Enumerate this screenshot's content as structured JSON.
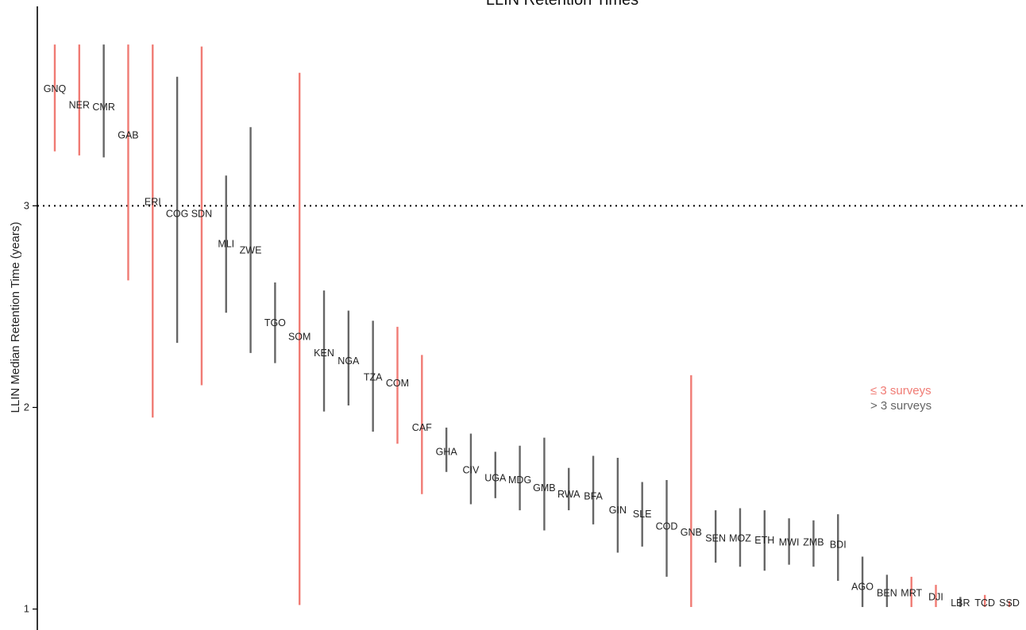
{
  "chart_data": {
    "type": "errorbar",
    "title": "LLIN Retention Times",
    "ylabel": "LLIN Median Retention Time (years)",
    "xlabel": "",
    "ylim": [
      0.9,
      3.95
    ],
    "yticks": [
      1,
      2,
      3
    ],
    "reference_line": {
      "y": 3,
      "style": "dotted"
    },
    "grid": false,
    "legend_position": "right",
    "colors": {
      "le3": "#f07b74",
      "gt3": "#666666"
    },
    "legend": [
      {
        "key": "le3",
        "label": "≤ 3 surveys"
      },
      {
        "key": "gt3",
        "label": "> 3 surveys"
      }
    ],
    "points": [
      {
        "code": "GNQ",
        "median": 3.58,
        "lower": 3.27,
        "upper": 3.8,
        "group": "le3"
      },
      {
        "code": "NER",
        "median": 3.5,
        "lower": 3.25,
        "upper": 3.8,
        "group": "le3"
      },
      {
        "code": "CMR",
        "median": 3.49,
        "lower": 3.24,
        "upper": 3.8,
        "group": "gt3"
      },
      {
        "code": "GAB",
        "median": 3.35,
        "lower": 2.63,
        "upper": 3.8,
        "group": "le3"
      },
      {
        "code": "ERI",
        "median": 3.02,
        "lower": 1.95,
        "upper": 3.8,
        "group": "le3"
      },
      {
        "code": "COG",
        "median": 2.96,
        "lower": 2.32,
        "upper": 3.64,
        "group": "gt3"
      },
      {
        "code": "SDN",
        "median": 2.96,
        "lower": 2.11,
        "upper": 3.79,
        "group": "le3"
      },
      {
        "code": "MLI",
        "median": 2.81,
        "lower": 2.47,
        "upper": 3.15,
        "group": "gt3"
      },
      {
        "code": "ZWE",
        "median": 2.78,
        "lower": 2.27,
        "upper": 3.39,
        "group": "gt3"
      },
      {
        "code": "TGO",
        "median": 2.42,
        "lower": 2.22,
        "upper": 2.62,
        "group": "gt3"
      },
      {
        "code": "SOM",
        "median": 2.35,
        "lower": 1.02,
        "upper": 3.66,
        "group": "le3"
      },
      {
        "code": "KEN",
        "median": 2.27,
        "lower": 1.98,
        "upper": 2.58,
        "group": "gt3"
      },
      {
        "code": "NGA",
        "median": 2.23,
        "lower": 2.01,
        "upper": 2.48,
        "group": "gt3"
      },
      {
        "code": "TZA",
        "median": 2.15,
        "lower": 1.88,
        "upper": 2.43,
        "group": "gt3"
      },
      {
        "code": "COM",
        "median": 2.12,
        "lower": 1.82,
        "upper": 2.4,
        "group": "le3"
      },
      {
        "code": "CAF",
        "median": 1.9,
        "lower": 1.57,
        "upper": 2.26,
        "group": "le3"
      },
      {
        "code": "GHA",
        "median": 1.78,
        "lower": 1.68,
        "upper": 1.9,
        "group": "gt3"
      },
      {
        "code": "CIV",
        "median": 1.69,
        "lower": 1.52,
        "upper": 1.87,
        "group": "gt3"
      },
      {
        "code": "UGA",
        "median": 1.65,
        "lower": 1.55,
        "upper": 1.78,
        "group": "gt3"
      },
      {
        "code": "MDG",
        "median": 1.64,
        "lower": 1.49,
        "upper": 1.81,
        "group": "gt3"
      },
      {
        "code": "GMB",
        "median": 1.6,
        "lower": 1.39,
        "upper": 1.85,
        "group": "gt3"
      },
      {
        "code": "RWA",
        "median": 1.57,
        "lower": 1.49,
        "upper": 1.7,
        "group": "gt3"
      },
      {
        "code": "BFA",
        "median": 1.56,
        "lower": 1.42,
        "upper": 1.76,
        "group": "gt3"
      },
      {
        "code": "GIN",
        "median": 1.49,
        "lower": 1.28,
        "upper": 1.75,
        "group": "gt3"
      },
      {
        "code": "SLE",
        "median": 1.47,
        "lower": 1.31,
        "upper": 1.63,
        "group": "gt3"
      },
      {
        "code": "COD",
        "median": 1.41,
        "lower": 1.16,
        "upper": 1.64,
        "group": "gt3"
      },
      {
        "code": "GNB",
        "median": 1.38,
        "lower": 1.01,
        "upper": 2.16,
        "group": "le3"
      },
      {
        "code": "SEN",
        "median": 1.35,
        "lower": 1.23,
        "upper": 1.49,
        "group": "gt3"
      },
      {
        "code": "MOZ",
        "median": 1.35,
        "lower": 1.21,
        "upper": 1.5,
        "group": "gt3"
      },
      {
        "code": "ETH",
        "median": 1.34,
        "lower": 1.19,
        "upper": 1.49,
        "group": "gt3"
      },
      {
        "code": "MWI",
        "median": 1.33,
        "lower": 1.22,
        "upper": 1.45,
        "group": "gt3"
      },
      {
        "code": "ZMB",
        "median": 1.33,
        "lower": 1.21,
        "upper": 1.44,
        "group": "gt3"
      },
      {
        "code": "BDI",
        "median": 1.32,
        "lower": 1.14,
        "upper": 1.47,
        "group": "gt3"
      },
      {
        "code": "AGO",
        "median": 1.11,
        "lower": 1.01,
        "upper": 1.26,
        "group": "gt3"
      },
      {
        "code": "BEN",
        "median": 1.08,
        "lower": 1.01,
        "upper": 1.17,
        "group": "gt3"
      },
      {
        "code": "MRT",
        "median": 1.08,
        "lower": 1.01,
        "upper": 1.16,
        "group": "le3"
      },
      {
        "code": "DJI",
        "median": 1.06,
        "lower": 1.01,
        "upper": 1.12,
        "group": "le3"
      },
      {
        "code": "LBR",
        "median": 1.03,
        "lower": 1.01,
        "upper": 1.06,
        "group": "gt3"
      },
      {
        "code": "TCD",
        "median": 1.03,
        "lower": 1.01,
        "upper": 1.07,
        "group": "le3"
      },
      {
        "code": "SSD",
        "median": 1.03,
        "lower": 1.01,
        "upper": 1.04,
        "group": "le3"
      }
    ]
  }
}
